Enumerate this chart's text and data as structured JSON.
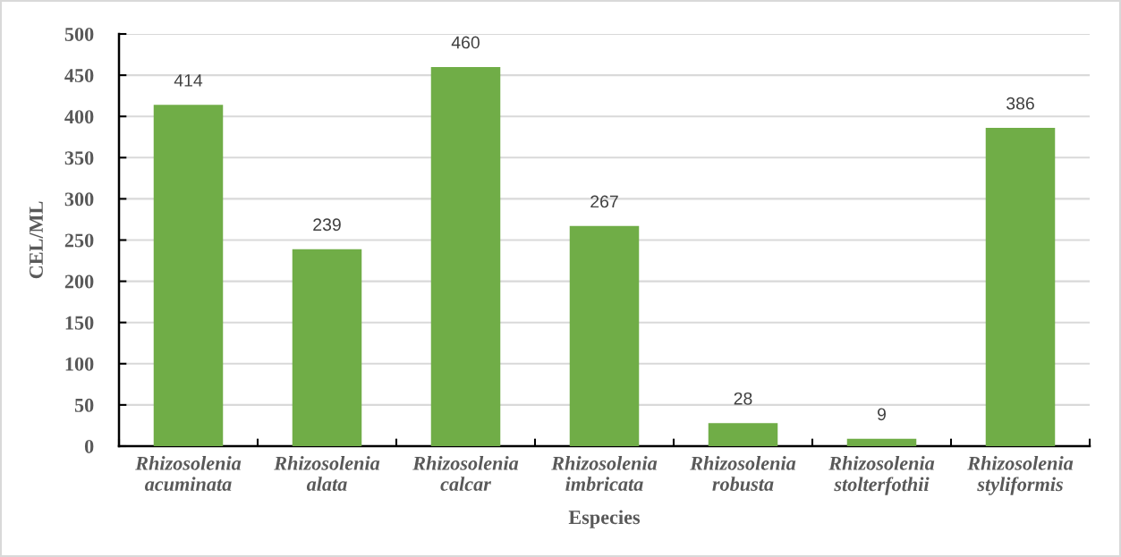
{
  "chart_data": {
    "type": "bar",
    "xlabel": "Especies",
    "ylabel": "CEL/ML",
    "categories": [
      "Rhizosolenia acuminata",
      "Rhizosolenia alata",
      "Rhizosolenia calcar",
      "Rhizosolenia imbricata",
      "Rhizosolenia robusta",
      "Rhizosolenia stolterfothii",
      "Rhizosolenia styliformis"
    ],
    "values": [
      414,
      239,
      460,
      267,
      28,
      9,
      386
    ],
    "color": "#70ad47",
    "ylim": [
      0,
      500
    ],
    "yticks": [
      0,
      50,
      100,
      150,
      200,
      250,
      300,
      350,
      400,
      450,
      500
    ],
    "grid": "y",
    "data_labels": true
  }
}
